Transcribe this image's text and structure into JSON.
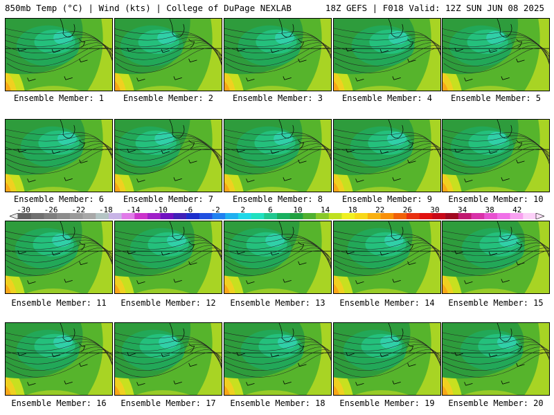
{
  "header": {
    "left": "850mb Temp (°C) | Wind (kts) | College of DuPage NEXLAB",
    "right": "18Z GEFS | F018 Valid: 12Z SUN JUN 08 2025"
  },
  "panel_caption_prefix": "Ensemble Member: ",
  "members": [
    {
      "label": "Ensemble Member: 1"
    },
    {
      "label": "Ensemble Member: 2"
    },
    {
      "label": "Ensemble Member: 3"
    },
    {
      "label": "Ensemble Member: 4"
    },
    {
      "label": "Ensemble Member: 5"
    },
    {
      "label": "Ensemble Member: 6"
    },
    {
      "label": "Ensemble Member: 7"
    },
    {
      "label": "Ensemble Member: 8"
    },
    {
      "label": "Ensemble Member: 9"
    },
    {
      "label": "Ensemble Member: 10"
    },
    {
      "label": "Ensemble Member: 11"
    },
    {
      "label": "Ensemble Member: 12"
    },
    {
      "label": "Ensemble Member: 13"
    },
    {
      "label": "Ensemble Member: 14"
    },
    {
      "label": "Ensemble Member: 15"
    },
    {
      "label": "Ensemble Member: 16"
    },
    {
      "label": "Ensemble Member: 17"
    },
    {
      "label": "Ensemble Member: 18"
    },
    {
      "label": "Ensemble Member: 19"
    },
    {
      "label": "Ensemble Member: 20"
    }
  ],
  "colorbar": {
    "labels": [
      "-30",
      "-26",
      "-22",
      "-18",
      "-14",
      "-10",
      "-6",
      "-2",
      "2",
      "6",
      "10",
      "14",
      "18",
      "22",
      "26",
      "30",
      "34",
      "38",
      "42"
    ],
    "colors": [
      "#606060",
      "#707070",
      "#7e7e7e",
      "#8c8c8c",
      "#9a9a9a",
      "#a8a8a8",
      "#b4c4c4",
      "#c8b4e6",
      "#e07ae8",
      "#cc33cc",
      "#a020c8",
      "#7010c0",
      "#4020b8",
      "#1c2ecc",
      "#2050e0",
      "#2080f0",
      "#20b0f0",
      "#20d8e8",
      "#20e0c0",
      "#20c890",
      "#18b060",
      "#20a040",
      "#50b030",
      "#88c828",
      "#c0e020",
      "#f0f020",
      "#f8d818",
      "#f8b010",
      "#f89008",
      "#f06008",
      "#e83010",
      "#e01010",
      "#c80818",
      "#a00820",
      "#c01870",
      "#d830a8",
      "#e850d0",
      "#f070e8",
      "#f8a0f0",
      "#fcd0f8"
    ]
  }
}
